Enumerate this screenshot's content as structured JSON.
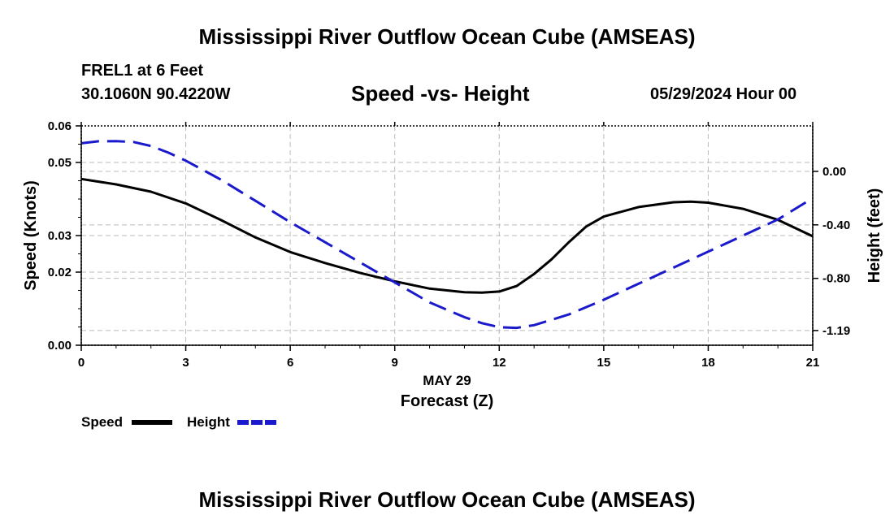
{
  "header": {
    "title": "Mississippi River Outflow Ocean Cube (AMSEAS)",
    "station": "FREL1 at 6 Feet",
    "coords": "30.1060N  90.4220W",
    "datetime": "05/29/2024 Hour 00"
  },
  "footer": {
    "title": "Mississippi River Outflow Ocean Cube (AMSEAS)"
  },
  "colors": {
    "speed": "#000000",
    "height": "#1a1acc",
    "grid": "#bbbbbb"
  },
  "chart_data": {
    "type": "line",
    "title": "Speed -vs- Height",
    "xlabel": "Forecast (Z)",
    "xsublabel": "MAY 29",
    "ylabel": "Speed (Knots)",
    "y2label": "Height (feet)",
    "xlim": [
      0,
      21
    ],
    "ylim": [
      0,
      0.06
    ],
    "y2lim": [
      -1.3,
      0.34
    ],
    "xticks": [
      0,
      3,
      6,
      9,
      12,
      15,
      18,
      21
    ],
    "xtick_labels": [
      "0",
      "3",
      "6",
      "9",
      "12",
      "15",
      "18",
      "21"
    ],
    "yticks": [
      0.0,
      0.02,
      0.03,
      0.05,
      0.06
    ],
    "ytick_labels": [
      "0.00",
      "0.02",
      "0.03",
      "0.05",
      "0.06"
    ],
    "y2ticks": [
      0.0,
      -0.4,
      -0.8,
      -1.19
    ],
    "y2tick_labels": [
      "0.00",
      "-0.40",
      "-0.80",
      "-1.19"
    ],
    "grid": true,
    "legend_position": "bottom-left",
    "series": [
      {
        "name": "Speed",
        "axis": "left",
        "style": "solid",
        "x": [
          0,
          1,
          2,
          3,
          4,
          5,
          6,
          7,
          8,
          9,
          10,
          11,
          11.5,
          12,
          12.5,
          13,
          13.5,
          14,
          14.5,
          15,
          16,
          17,
          17.5,
          18,
          19,
          20,
          21
        ],
        "values": [
          0.0455,
          0.044,
          0.042,
          0.0388,
          0.0343,
          0.0295,
          0.0255,
          0.0225,
          0.0198,
          0.0175,
          0.0155,
          0.0145,
          0.0144,
          0.0147,
          0.0162,
          0.0195,
          0.0235,
          0.0282,
          0.0325,
          0.0352,
          0.0378,
          0.0391,
          0.0393,
          0.039,
          0.0373,
          0.0343,
          0.0298
        ]
      },
      {
        "name": "Height",
        "axis": "right",
        "style": "dashed",
        "x": [
          0,
          0.5,
          1,
          1.5,
          2,
          2.5,
          3,
          4,
          5,
          6,
          7,
          8,
          9,
          10,
          11,
          11.5,
          12,
          12.5,
          13,
          14,
          15,
          16,
          17,
          18,
          19,
          20,
          21
        ],
        "values": [
          0.21,
          0.225,
          0.226,
          0.22,
          0.19,
          0.14,
          0.08,
          -0.06,
          -0.22,
          -0.38,
          -0.53,
          -0.68,
          -0.83,
          -0.98,
          -1.09,
          -1.135,
          -1.165,
          -1.17,
          -1.15,
          -1.07,
          -0.96,
          -0.84,
          -0.72,
          -0.6,
          -0.48,
          -0.36,
          -0.2
        ]
      }
    ]
  }
}
